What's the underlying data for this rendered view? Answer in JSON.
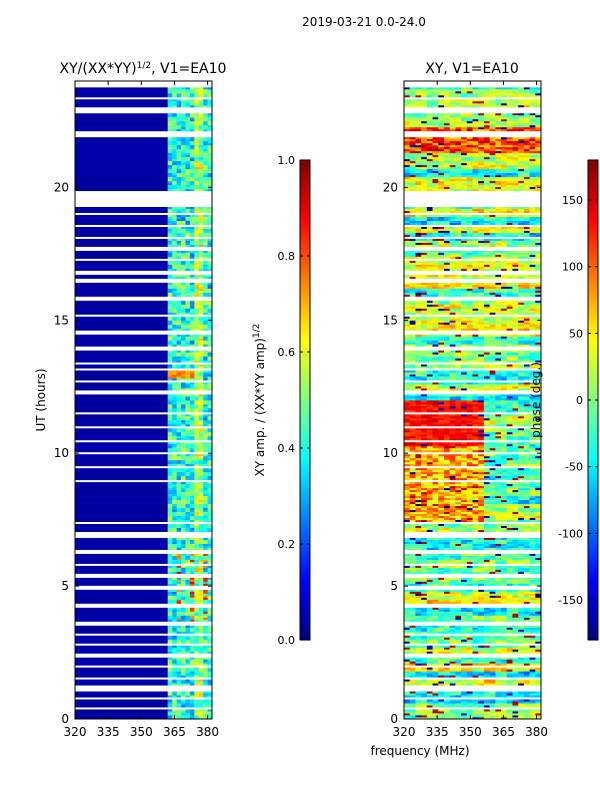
{
  "suptitle": "2019-03-21 0.0-24.0",
  "xlabel": "frequency (MHz)",
  "colors": {
    "frame": "#000000",
    "missing": "#ffffff"
  },
  "chart_data": [
    {
      "type": "heatmap",
      "title": "XY/(XX*YY)",
      "title_exponent": "1/2",
      "title_suffix": ", V1=EA10",
      "xlabel": "frequency (MHz)",
      "ylabel": "UT (hours)",
      "xlim": [
        320,
        382
      ],
      "ylim": [
        0,
        24
      ],
      "xticks": [
        320,
        335,
        350,
        365,
        380
      ],
      "yticks": [
        0,
        5,
        10,
        15,
        20
      ],
      "colorbar": {
        "label": "XY amp. / (XX*YY amp)",
        "label_exponent": "1/2",
        "cmap": "jet",
        "vmin": 0.0,
        "vmax": 1.0,
        "ticks": [
          "0.0",
          "0.2",
          "0.4",
          "0.6",
          "0.8",
          "1.0"
        ]
      },
      "flagged_bands_ut": [
        [
          0.05,
          0.1
        ],
        [
          0.35,
          0.45
        ],
        [
          0.75,
          0.8
        ],
        [
          1.05,
          1.25
        ],
        [
          1.5,
          1.55
        ],
        [
          1.95,
          2.05
        ],
        [
          2.35,
          2.45
        ],
        [
          2.75,
          2.85
        ],
        [
          3.15,
          3.2
        ],
        [
          3.55,
          3.65
        ],
        [
          4.2,
          4.35
        ],
        [
          4.9,
          5.0
        ],
        [
          5.35,
          5.45
        ],
        [
          5.75,
          5.85
        ],
        [
          6.25,
          6.35
        ],
        [
          6.85,
          7.05
        ],
        [
          7.35,
          7.45
        ],
        [
          7.85,
          7.9
        ],
        [
          8.45,
          8.5
        ],
        [
          8.95,
          9.0
        ],
        [
          9.45,
          9.5
        ],
        [
          9.95,
          10.05
        ],
        [
          10.45,
          10.5
        ],
        [
          10.95,
          11.05
        ],
        [
          11.45,
          11.55
        ],
        [
          12.25,
          12.35
        ],
        [
          12.65,
          12.75
        ],
        [
          13.1,
          13.2
        ],
        [
          13.35,
          13.45
        ],
        [
          13.85,
          14.05
        ],
        [
          14.45,
          14.6
        ],
        [
          15.15,
          15.25
        ],
        [
          15.75,
          15.9
        ],
        [
          16.45,
          16.55
        ],
        [
          16.75,
          16.85
        ],
        [
          17.25,
          17.35
        ],
        [
          17.65,
          17.75
        ],
        [
          18.1,
          18.15
        ],
        [
          18.5,
          18.6
        ],
        [
          18.95,
          19.05
        ],
        [
          19.3,
          19.85
        ],
        [
          20.0,
          20.05
        ],
        [
          20.45,
          20.5
        ],
        [
          21.9,
          22.1
        ],
        [
          22.8,
          23.05
        ],
        [
          23.3,
          23.4
        ],
        [
          23.75,
          24.0
        ]
      ],
      "notes": "Dark blue (low amplitude) below ~362 MHz; mixed cyan/green/yellow stripes between ~362-382 MHz."
    },
    {
      "type": "heatmap",
      "title": "XY, V1=EA10",
      "xlabel": "frequency (MHz)",
      "ylabel": "",
      "xlim": [
        320,
        382
      ],
      "ylim": [
        0,
        24
      ],
      "xticks": [
        320,
        335,
        350,
        365,
        380
      ],
      "yticks": [
        0,
        5,
        10,
        15,
        20
      ],
      "colorbar": {
        "label": "phase (deg.)",
        "cmap": "jet",
        "vmin": -180,
        "vmax": 180,
        "ticks": [
          "-150",
          "-100",
          "-50",
          "0",
          "50",
          "100",
          "150"
        ]
      },
      "flagged_bands_ut": [
        [
          0.05,
          0.1
        ],
        [
          0.35,
          0.45
        ],
        [
          0.75,
          0.8
        ],
        [
          1.05,
          1.25
        ],
        [
          1.5,
          1.55
        ],
        [
          1.95,
          2.05
        ],
        [
          2.35,
          2.45
        ],
        [
          2.75,
          2.85
        ],
        [
          3.15,
          3.2
        ],
        [
          3.55,
          3.65
        ],
        [
          4.2,
          4.35
        ],
        [
          4.9,
          5.0
        ],
        [
          5.35,
          5.45
        ],
        [
          5.75,
          5.85
        ],
        [
          6.25,
          6.35
        ],
        [
          6.85,
          7.05
        ],
        [
          7.35,
          7.45
        ],
        [
          7.85,
          7.9
        ],
        [
          8.45,
          8.5
        ],
        [
          8.95,
          9.0
        ],
        [
          9.45,
          9.5
        ],
        [
          9.95,
          10.05
        ],
        [
          10.45,
          10.5
        ],
        [
          10.95,
          11.05
        ],
        [
          11.45,
          11.55
        ],
        [
          12.25,
          12.35
        ],
        [
          12.65,
          12.75
        ],
        [
          13.1,
          13.2
        ],
        [
          13.35,
          13.45
        ],
        [
          13.85,
          14.05
        ],
        [
          14.45,
          14.6
        ],
        [
          15.15,
          15.25
        ],
        [
          15.75,
          15.9
        ],
        [
          16.45,
          16.55
        ],
        [
          16.75,
          16.85
        ],
        [
          17.25,
          17.35
        ],
        [
          17.65,
          17.75
        ],
        [
          18.1,
          18.15
        ],
        [
          18.5,
          18.6
        ],
        [
          18.95,
          19.05
        ],
        [
          19.3,
          19.85
        ],
        [
          20.0,
          20.05
        ],
        [
          20.45,
          20.5
        ],
        [
          21.9,
          22.1
        ],
        [
          22.8,
          23.05
        ],
        [
          23.3,
          23.4
        ],
        [
          23.75,
          24.0
        ]
      ],
      "notes": "Phase varies widely (noisy full-colour stripes); red/orange dominates ~10.5-12 UT below ~355 MHz."
    }
  ]
}
